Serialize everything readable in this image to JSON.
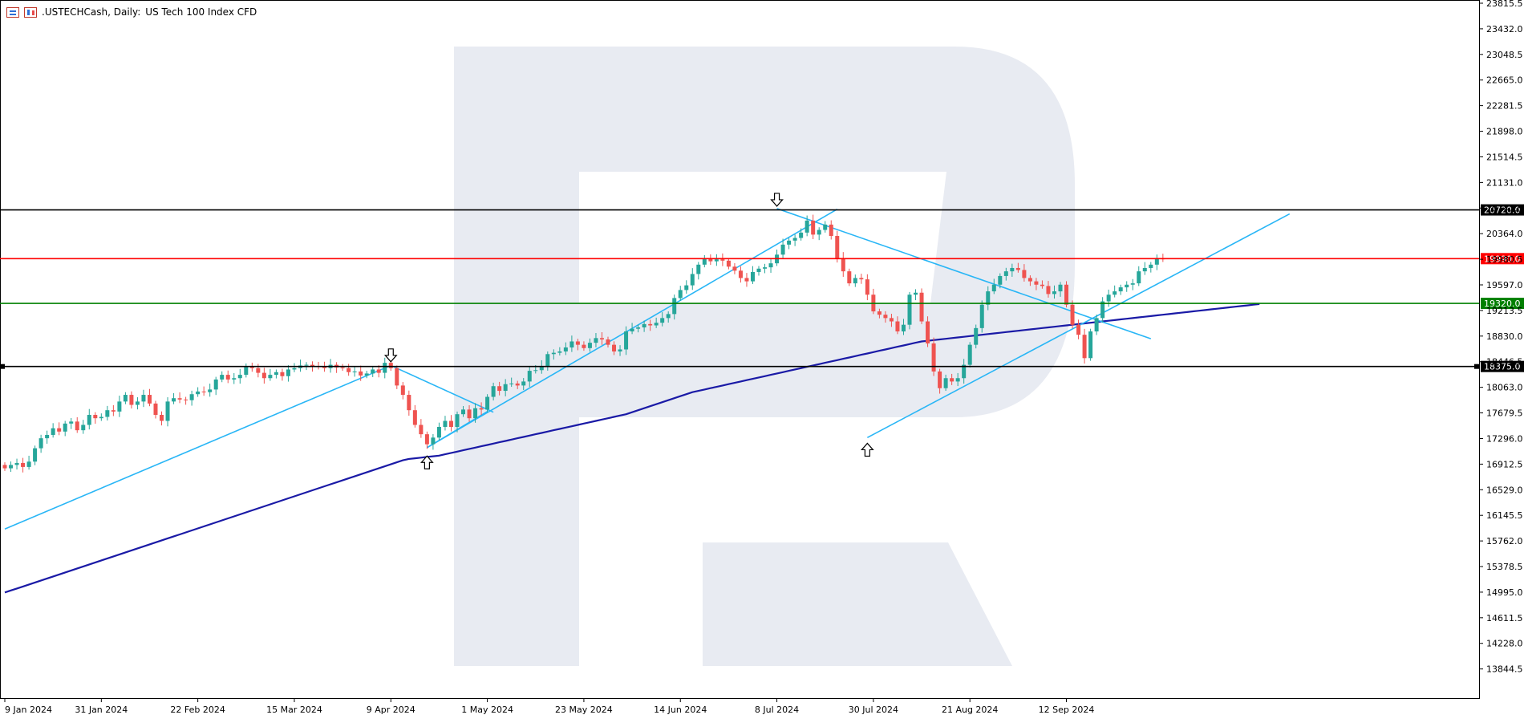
{
  "header": {
    "symbol": ".USTECHCash, Daily:",
    "description": "US Tech 100 Index CFD"
  },
  "icons": [
    "bar-chart-icon",
    "candlestick-icon"
  ],
  "colors": {
    "background": "#ffffff",
    "grid_border": "#000000",
    "bull": "#26a69a",
    "bear": "#ef5350",
    "trendline": "#29b6f6",
    "moving_average": "#1a1aa6",
    "resistance_black": "#000000",
    "resistance_red": "#ff0000",
    "support_green": "#008000",
    "watermark": "#e8ebf2"
  },
  "chart_data": {
    "type": "candlestick",
    "ylim": [
      13600,
      23815.5
    ],
    "y_ticks": [
      23815.5,
      23432.0,
      23048.5,
      22665.0,
      22281.5,
      21898.0,
      21514.5,
      21131.0,
      20747.5,
      20364.0,
      19980.5,
      19597.0,
      19213.5,
      18830.0,
      18446.5,
      18063.0,
      17679.5,
      17296.0,
      16912.5,
      16529.0,
      16145.5,
      15762.0,
      15378.5,
      14995.0,
      14611.5,
      14228.0,
      13844.5
    ],
    "x_tick_labels": [
      "9 Jan 2024",
      "31 Jan 2024",
      "22 Feb 2024",
      "15 Mar 2024",
      "9 Apr 2024",
      "1 May 2024",
      "23 May 2024",
      "14 Jun 2024",
      "8 Jul 2024",
      "30 Jul 2024",
      "21 Aug 2024",
      "12 Sep 2024"
    ],
    "x_tick_index": [
      0,
      16,
      32,
      48,
      64,
      80,
      96,
      112,
      128,
      144,
      160,
      176
    ],
    "bars_visible": 224,
    "candles": {
      "open": [
        16900,
        16850,
        16900,
        16930,
        16870,
        16950,
        17150,
        17300,
        17350,
        17450,
        17400,
        17520,
        17550,
        17420,
        17500,
        17650,
        17600,
        17620,
        17720,
        17700,
        17850,
        17950,
        17800,
        17850,
        17950,
        17820,
        17650,
        17560,
        17850,
        17900,
        17880,
        17870,
        17960,
        18000,
        17990,
        18030,
        18180,
        18250,
        18180,
        18200,
        18250,
        18380,
        18350,
        18280,
        18200,
        18250,
        18290,
        18230,
        18330,
        18350,
        18390,
        18400,
        18380,
        18370,
        18350,
        18400,
        18360,
        18350,
        18290,
        18300,
        18240,
        18270,
        18330,
        18280,
        18430,
        18350,
        18090,
        17950,
        17720,
        17500,
        17360,
        17210,
        17310,
        17470,
        17560,
        17470,
        17660,
        17730,
        17600,
        17750,
        17730,
        17920,
        18080,
        18010,
        18110,
        18120,
        18090,
        18150,
        18310,
        18320,
        18380,
        18560,
        18580,
        18600,
        18660,
        18750,
        18700,
        18650,
        18730,
        18800,
        18780,
        18700,
        18600,
        18630,
        18900,
        18940,
        18960,
        19010,
        18990,
        19030,
        19100,
        19160,
        19400,
        19520,
        19590,
        19760,
        19900,
        19990,
        19950,
        19980,
        19960,
        19870,
        19810,
        19700,
        19650,
        19790,
        19840,
        19860,
        19920,
        20050,
        20200,
        20260,
        20300,
        20380,
        20560,
        20350,
        20420,
        20500,
        20330,
        20000,
        19800,
        19620,
        19700,
        19680,
        19450,
        19200,
        19150,
        19100,
        19050,
        18900,
        19000,
        19450,
        19480,
        19050,
        18720,
        18300,
        18050,
        18200,
        18150,
        18200,
        18400,
        18700,
        18950,
        19300,
        19500,
        19600,
        19730,
        19800,
        19850,
        19820,
        19700,
        19650,
        19600,
        19580,
        19460,
        19500,
        19600,
        19300,
        19000,
        18850,
        18500,
        18900,
        19100,
        19350,
        19450,
        19500,
        19560,
        19600,
        19620,
        19800,
        19850,
        19900,
        20000
      ],
      "close": [
        16850,
        16900,
        16930,
        16870,
        16950,
        17150,
        17300,
        17350,
        17450,
        17400,
        17520,
        17550,
        17420,
        17500,
        17650,
        17600,
        17620,
        17720,
        17700,
        17850,
        17950,
        17800,
        17850,
        17950,
        17820,
        17650,
        17560,
        17850,
        17900,
        17880,
        17870,
        17960,
        18000,
        17990,
        18030,
        18180,
        18250,
        18180,
        18200,
        18250,
        18380,
        18350,
        18280,
        18200,
        18250,
        18290,
        18230,
        18330,
        18350,
        18390,
        18400,
        18380,
        18370,
        18350,
        18400,
        18360,
        18350,
        18290,
        18300,
        18240,
        18270,
        18330,
        18280,
        18430,
        18350,
        18090,
        17950,
        17720,
        17500,
        17360,
        17210,
        17310,
        17470,
        17560,
        17470,
        17660,
        17730,
        17600,
        17750,
        17730,
        17920,
        18080,
        18010,
        18110,
        18120,
        18090,
        18150,
        18310,
        18320,
        18380,
        18560,
        18580,
        18600,
        18660,
        18750,
        18700,
        18650,
        18730,
        18800,
        18780,
        18700,
        18600,
        18630,
        18900,
        18940,
        18960,
        19010,
        18990,
        19030,
        19100,
        19160,
        19400,
        19520,
        19590,
        19760,
        19900,
        19990,
        19950,
        19980,
        19960,
        19870,
        19810,
        19700,
        19650,
        19790,
        19840,
        19860,
        19920,
        20050,
        20200,
        20260,
        20300,
        20380,
        20560,
        20350,
        20420,
        20500,
        20330,
        20000,
        19800,
        19620,
        19700,
        19680,
        19450,
        19200,
        19150,
        19100,
        19050,
        18900,
        19000,
        19450,
        19480,
        19050,
        18720,
        18300,
        18050,
        18200,
        18150,
        18200,
        18400,
        18700,
        18950,
        19300,
        19500,
        19600,
        19730,
        19800,
        19850,
        19820,
        19700,
        19650,
        19600,
        19580,
        19460,
        19500,
        19600,
        19300,
        19000,
        18850,
        18500,
        18900,
        19100,
        19350,
        19450,
        19500,
        19560,
        19600,
        19620,
        19800,
        19850,
        19900,
        20000,
        19980
      ]
    },
    "moving_average": {
      "start_index": 0,
      "values": [
        14990,
        15020,
        15050,
        15080,
        15110,
        15140,
        15170,
        15200,
        15230,
        15260,
        15290,
        15320,
        15350,
        15380,
        15410,
        15440,
        15470,
        15500,
        15530,
        15560,
        15590,
        15620,
        15650,
        15680,
        15710,
        15740,
        15770,
        15800,
        15830,
        15860,
        15890,
        15920,
        15950,
        15980,
        16010,
        16040,
        16070,
        16100,
        16130,
        16160,
        16190,
        16220,
        16250,
        16280,
        16310,
        16340,
        16370,
        16400,
        16430,
        16460,
        16490,
        16520,
        16550,
        16580,
        16610,
        16640,
        16670,
        16700,
        16730,
        16760,
        16790,
        16820,
        16850,
        16880,
        16910,
        16940,
        16970,
        16990,
        17000,
        17010,
        17020,
        17030,
        17040,
        17060,
        17080,
        17100,
        17120,
        17140,
        17160,
        17180,
        17200,
        17220,
        17240,
        17260,
        17280,
        17300,
        17320,
        17340,
        17360,
        17380,
        17400,
        17420,
        17440,
        17460,
        17480,
        17500,
        17520,
        17540,
        17560,
        17580,
        17600,
        17620,
        17640,
        17660,
        17690,
        17720,
        17750,
        17780,
        17810,
        17840,
        17870,
        17900,
        17930,
        17960,
        17990,
        18010,
        18030,
        18050,
        18070,
        18090,
        18110,
        18130,
        18150,
        18170,
        18190,
        18210,
        18230,
        18250,
        18270,
        18290,
        18310,
        18330,
        18350,
        18370,
        18390,
        18410,
        18430,
        18450,
        18470,
        18490,
        18510,
        18530,
        18550,
        18570,
        18590,
        18610,
        18630,
        18650,
        18670,
        18690,
        18710,
        18730,
        18750,
        18760,
        18770,
        18780,
        18790,
        18800,
        18810,
        18820,
        18830,
        18840,
        18850,
        18860,
        18870,
        18880,
        18890,
        18900,
        18910,
        18920,
        18930,
        18940,
        18950,
        18960,
        18970,
        18980,
        18990,
        19000,
        19010,
        19020,
        19030,
        19040,
        19050,
        19060,
        19070,
        19080,
        19090,
        19100,
        19110,
        19120,
        19130,
        19140,
        19150,
        19160,
        19170,
        19180,
        19190,
        19200,
        19210,
        19220,
        19230,
        19240,
        19250,
        19260,
        19270,
        19280,
        19290,
        19300,
        19310
      ]
    },
    "horizontal_levels": [
      {
        "value": 20720.0,
        "label": "20720.0",
        "color": "#000000",
        "badge_bg": "#000000"
      },
      {
        "value": 19990.0,
        "label": "19990.0",
        "color": "#ff0000",
        "badge_bg": "#ff0000"
      },
      {
        "value": 19320.0,
        "label": "19320.0",
        "color": "#008000",
        "badge_bg": "#008000"
      },
      {
        "value": 18375.0,
        "label": "18375.0",
        "color": "#000000",
        "badge_bg": "#000000"
      }
    ],
    "trendlines": [
      {
        "from": [
          0,
          15940
        ],
        "to": [
          64,
          18390
        ]
      },
      {
        "from": [
          64,
          18390
        ],
        "to": [
          81,
          17690
        ]
      },
      {
        "from": [
          70,
          17160
        ],
        "to": [
          80,
          17700
        ]
      },
      {
        "from": [
          70,
          17160
        ],
        "to": [
          138,
          20730
        ]
      },
      {
        "from": [
          128,
          20740
        ],
        "to": [
          190,
          18790
        ]
      },
      {
        "from": [
          143,
          17310
        ],
        "to": [
          213,
          20660
        ]
      }
    ],
    "arrows": [
      {
        "x_index": 64,
        "value": 18530,
        "direction": "down"
      },
      {
        "x_index": 70,
        "value": 16950,
        "direction": "up"
      },
      {
        "x_index": 128,
        "value": 20860,
        "direction": "down"
      },
      {
        "x_index": 143,
        "value": 17140,
        "direction": "up"
      }
    ]
  }
}
